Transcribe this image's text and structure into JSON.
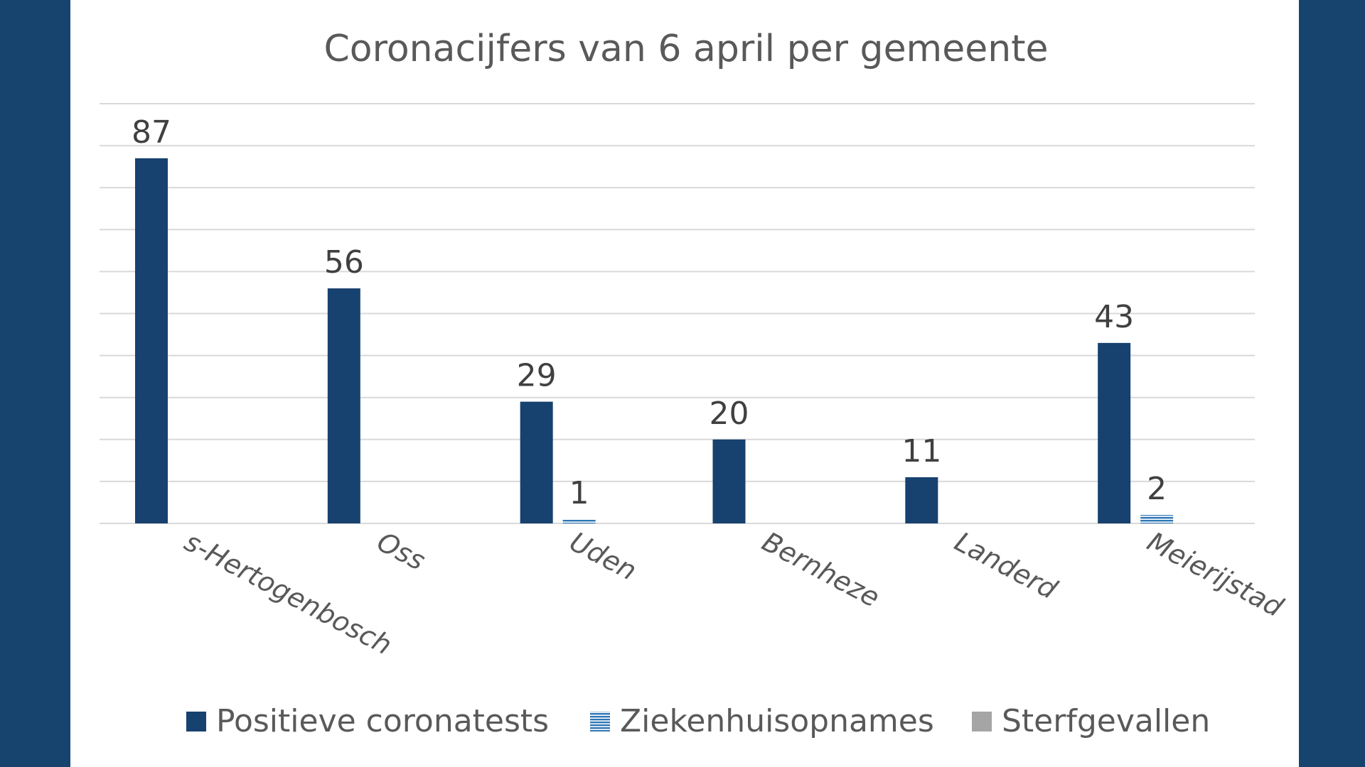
{
  "chart_data": {
    "type": "bar",
    "title": "Coronacijfers van 6 april per gemeente",
    "categories": [
      "s-Hertogenbosch",
      "Oss",
      "Uden",
      "Bernheze",
      "Landerd",
      "Meierijstad"
    ],
    "series": [
      {
        "name": "Positieve coronatests",
        "color": "#17416f",
        "values": [
          87,
          56,
          29,
          20,
          11,
          43
        ],
        "labels": [
          "87",
          "56",
          "29",
          "20",
          "11",
          "43"
        ]
      },
      {
        "name": "Ziekenhuisopnames",
        "color": "#2e75b6",
        "pattern": "horizontal-stripes",
        "values": [
          0,
          0,
          1,
          0,
          0,
          2
        ],
        "labels": [
          "",
          "",
          "1",
          "",
          "",
          "2"
        ]
      },
      {
        "name": "Sterfgevallen",
        "color": "#a5a5a5",
        "values": [
          0,
          0,
          0,
          0,
          0,
          0
        ],
        "labels": [
          "",
          "",
          "",
          "",
          "",
          ""
        ]
      }
    ],
    "ylim": [
      0,
      100
    ],
    "grid": true,
    "legend": "bottom",
    "xlabel": "",
    "ylabel": ""
  }
}
